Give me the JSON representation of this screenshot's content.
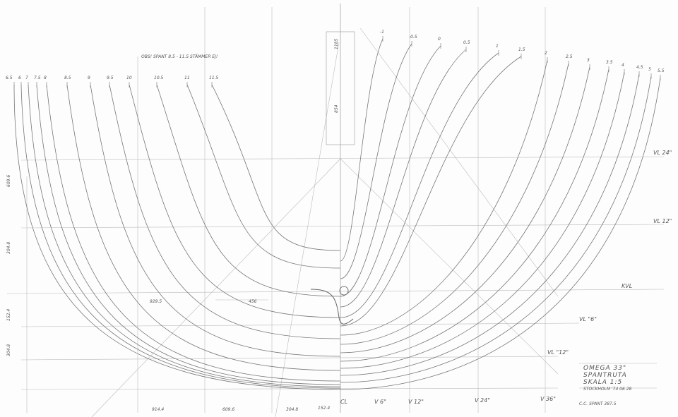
{
  "drawing": {
    "note": "OBS! SPANT 8.5 - 11.5 STÄMMER EJ!",
    "stations_left": [
      "6.5",
      "6",
      "7",
      "7.5",
      "8",
      "8.5",
      "9",
      "9.5",
      "10",
      "10.5",
      "11",
      "11.5"
    ],
    "stations_right": [
      "-1",
      "-0.5",
      "0",
      "0.5",
      "1",
      "1.5",
      "2",
      "2.5",
      "3",
      "3.5",
      "4",
      "4.5",
      "5",
      "5.5"
    ],
    "waterlines": {
      "vl24": "VL 24\"",
      "vl12": "VL 12\"",
      "kvl": "KVL",
      "vl6": "VL \"6\"",
      "vl12b": "VL \"12\""
    },
    "bottom_labels": {
      "d914": "914.4",
      "d609": "609.6",
      "d304": "304.8",
      "d152": "152.4",
      "cl": "CL",
      "v6": "V 6\"",
      "v12": "V 12\"",
      "v24": "V 24\"",
      "v36": "V 36\""
    },
    "left_dims": {
      "a": "609.6",
      "b": "304.8",
      "c": "152.4",
      "d": "304.8"
    },
    "center_dims": {
      "top": "1185",
      "mid": "854"
    },
    "diag_labels": {
      "d1": "929.5",
      "d2": "456"
    },
    "title_block": {
      "line1": "OMEGA 33\"",
      "line2": "SPANTRUTA",
      "line3": "SKALA 1:5",
      "line4": "STOCKHOLM '74 06 28",
      "line5": "C.C. SPANT 387.5"
    },
    "colors": {
      "ink": "#6a6a6a",
      "paper": "#fdfdfd"
    }
  }
}
